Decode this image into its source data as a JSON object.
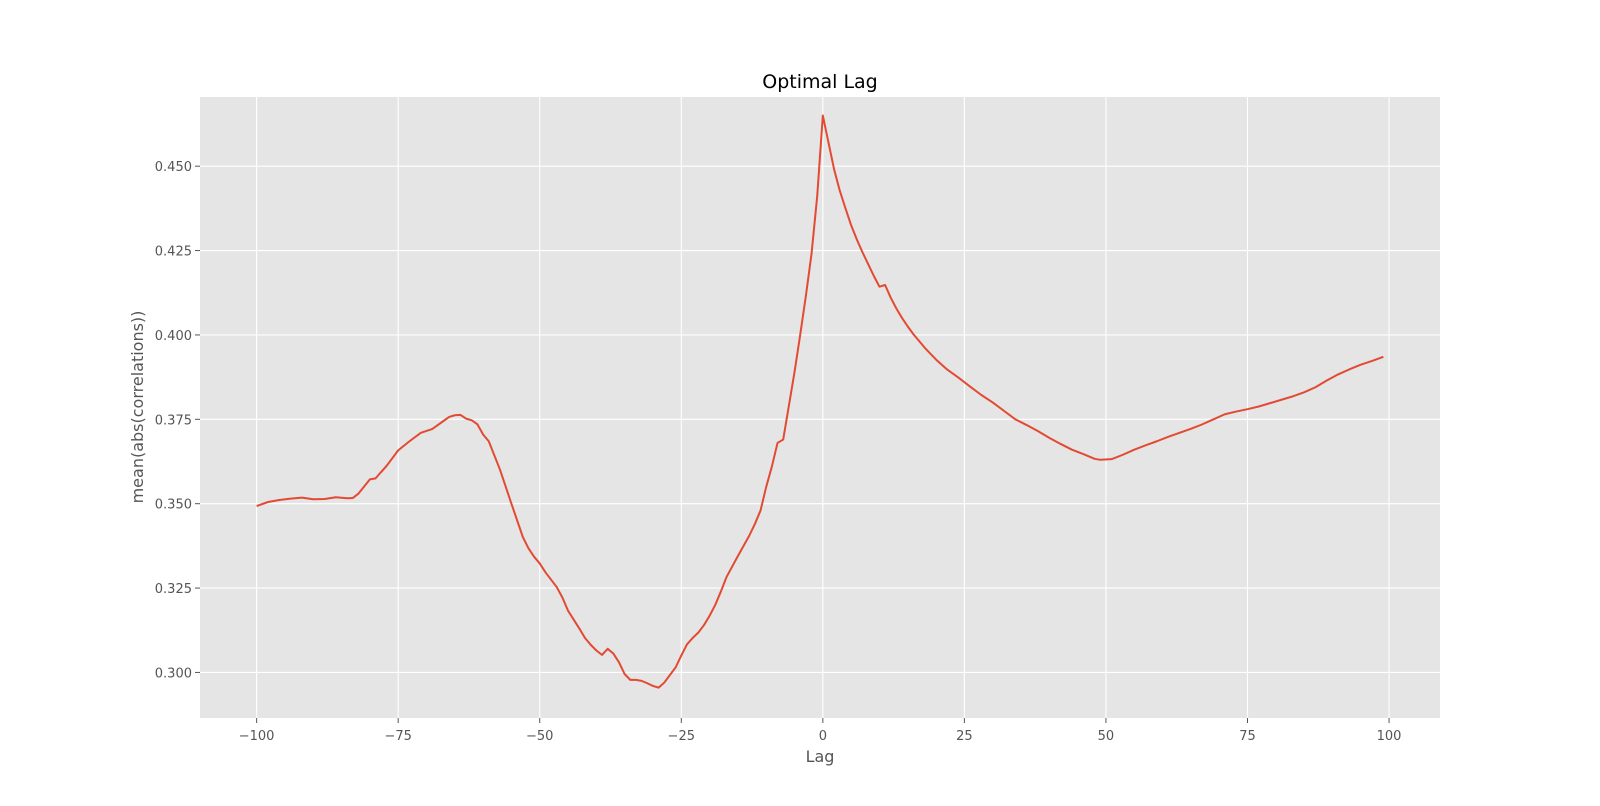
{
  "chart_data": {
    "type": "line",
    "title": "Optimal Lag",
    "xlabel": "Lag",
    "ylabel": "mean(abs(correlations))",
    "xlim": [
      -110,
      109
    ],
    "ylim": [
      0.2865,
      0.4705
    ],
    "x_ticks": [
      -100,
      -75,
      -50,
      -25,
      0,
      25,
      50,
      75,
      100
    ],
    "x_tick_labels": [
      "−100",
      "−75",
      "−50",
      "−25",
      "0",
      "25",
      "50",
      "75",
      "100"
    ],
    "y_ticks": [
      0.3,
      0.325,
      0.35,
      0.375,
      0.4,
      0.425,
      0.45
    ],
    "y_tick_labels": [
      "0.300",
      "0.325",
      "0.350",
      "0.375",
      "0.400",
      "0.425",
      "0.450"
    ],
    "grid": true,
    "colors": {
      "background": "#e5e5e5",
      "grid": "#ffffff",
      "line": "#e24a33"
    },
    "series": [
      {
        "points": [
          [
            -100,
            0.3493
          ],
          [
            -98,
            0.3505
          ],
          [
            -96,
            0.3511
          ],
          [
            -94,
            0.3515
          ],
          [
            -92,
            0.3518
          ],
          [
            -90,
            0.3513
          ],
          [
            -88,
            0.3514
          ],
          [
            -86,
            0.3519
          ],
          [
            -84,
            0.3516
          ],
          [
            -83,
            0.3517
          ],
          [
            -82,
            0.353
          ],
          [
            -80,
            0.3572
          ],
          [
            -79,
            0.3575
          ],
          [
            -77,
            0.3613
          ],
          [
            -75,
            0.3658
          ],
          [
            -73,
            0.3685
          ],
          [
            -71,
            0.371
          ],
          [
            -69,
            0.3721
          ],
          [
            -67,
            0.3745
          ],
          [
            -66,
            0.3757
          ],
          [
            -65,
            0.3762
          ],
          [
            -64,
            0.3763
          ],
          [
            -63,
            0.3752
          ],
          [
            -62,
            0.3747
          ],
          [
            -61,
            0.3735
          ],
          [
            -60,
            0.3705
          ],
          [
            -59,
            0.3685
          ],
          [
            -57,
            0.36
          ],
          [
            -55,
            0.35
          ],
          [
            -53,
            0.3402
          ],
          [
            -52,
            0.3368
          ],
          [
            -51,
            0.3343
          ],
          [
            -50,
            0.3323
          ],
          [
            -49,
            0.3297
          ],
          [
            -47,
            0.3253
          ],
          [
            -46,
            0.3222
          ],
          [
            -45,
            0.3183
          ],
          [
            -43,
            0.313
          ],
          [
            -42,
            0.3102
          ],
          [
            -41,
            0.3082
          ],
          [
            -40,
            0.3065
          ],
          [
            -39,
            0.3052
          ],
          [
            -38,
            0.307
          ],
          [
            -37,
            0.3056
          ],
          [
            -36,
            0.303
          ],
          [
            -35,
            0.2995
          ],
          [
            -34,
            0.2978
          ],
          [
            -33,
            0.2978
          ],
          [
            -32,
            0.2975
          ],
          [
            -31,
            0.2968
          ],
          [
            -30,
            0.296
          ],
          [
            -29,
            0.2955
          ],
          [
            -28,
            0.297
          ],
          [
            -26,
            0.3015
          ],
          [
            -25,
            0.305
          ],
          [
            -24,
            0.3083
          ],
          [
            -23,
            0.3102
          ],
          [
            -22,
            0.3118
          ],
          [
            -21,
            0.314
          ],
          [
            -20,
            0.3168
          ],
          [
            -19,
            0.32
          ],
          [
            -18,
            0.324
          ],
          [
            -17,
            0.3283
          ],
          [
            -15,
            0.3345
          ],
          [
            -13,
            0.3405
          ],
          [
            -12,
            0.344
          ],
          [
            -11,
            0.348
          ],
          [
            -10,
            0.355
          ],
          [
            -9,
            0.361
          ],
          [
            -8,
            0.368
          ],
          [
            -7,
            0.369
          ],
          [
            -6,
            0.379
          ],
          [
            -5,
            0.389
          ],
          [
            -4,
            0.4
          ],
          [
            -3,
            0.4115
          ],
          [
            -2,
            0.424
          ],
          [
            -1,
            0.441
          ],
          [
            0,
            0.465
          ],
          [
            1,
            0.457
          ],
          [
            2,
            0.449
          ],
          [
            3,
            0.4427
          ],
          [
            4,
            0.4375
          ],
          [
            5,
            0.4325
          ],
          [
            6,
            0.4283
          ],
          [
            7,
            0.4245
          ],
          [
            8,
            0.421
          ],
          [
            9,
            0.4175
          ],
          [
            10,
            0.4143
          ],
          [
            11,
            0.4148
          ],
          [
            12,
            0.411
          ],
          [
            13,
            0.4078
          ],
          [
            14,
            0.405
          ],
          [
            15,
            0.4025
          ],
          [
            16,
            0.4002
          ],
          [
            18,
            0.3962
          ],
          [
            20,
            0.3927
          ],
          [
            22,
            0.3897
          ],
          [
            24,
            0.3873
          ],
          [
            26,
            0.3847
          ],
          [
            28,
            0.3822
          ],
          [
            30,
            0.38
          ],
          [
            32,
            0.3775
          ],
          [
            34,
            0.375
          ],
          [
            36,
            0.3733
          ],
          [
            38,
            0.3715
          ],
          [
            40,
            0.3695
          ],
          [
            42,
            0.3677
          ],
          [
            44,
            0.366
          ],
          [
            46,
            0.3647
          ],
          [
            48,
            0.3633
          ],
          [
            49,
            0.363
          ],
          [
            51,
            0.3632
          ],
          [
            53,
            0.3645
          ],
          [
            55,
            0.366
          ],
          [
            57,
            0.3673
          ],
          [
            59,
            0.3685
          ],
          [
            61,
            0.3698
          ],
          [
            63,
            0.371
          ],
          [
            65,
            0.3722
          ],
          [
            67,
            0.3735
          ],
          [
            69,
            0.375
          ],
          [
            71,
            0.3765
          ],
          [
            73,
            0.3773
          ],
          [
            75,
            0.378
          ],
          [
            77,
            0.3788
          ],
          [
            79,
            0.3798
          ],
          [
            81,
            0.3808
          ],
          [
            83,
            0.3818
          ],
          [
            85,
            0.383
          ],
          [
            87,
            0.3845
          ],
          [
            89,
            0.3865
          ],
          [
            91,
            0.3883
          ],
          [
            93,
            0.3898
          ],
          [
            95,
            0.3912
          ],
          [
            97,
            0.3923
          ],
          [
            99,
            0.3935
          ]
        ]
      }
    ]
  }
}
